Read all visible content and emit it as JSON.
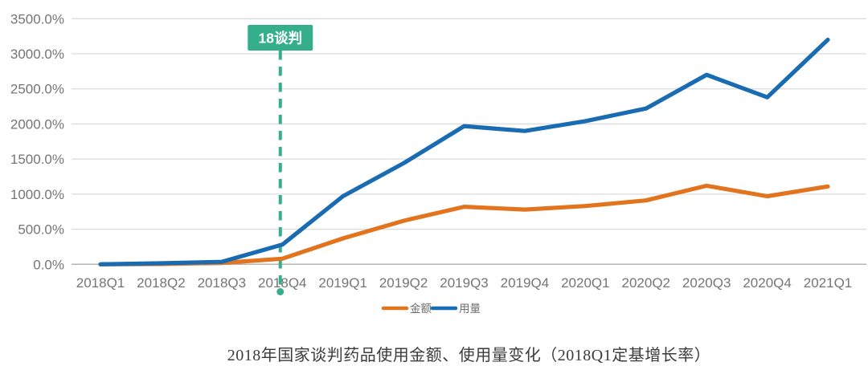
{
  "title": "2018年国家谈判药品使用金额、使用量变化（2018Q1定基增长率）",
  "chart_data": {
    "type": "line",
    "title": "2018年国家谈判药品使用金额、使用量变化（2018Q1定基增长率）",
    "categories": [
      "2018Q1",
      "2018Q2",
      "2018Q3",
      "2018Q4",
      "2019Q1",
      "2019Q2",
      "2019Q3",
      "2019Q4",
      "2020Q1",
      "2020Q2",
      "2020Q3",
      "2020Q4",
      "2021Q1"
    ],
    "series": [
      {
        "id": "amount",
        "name": "金额",
        "color": "#e2741e",
        "values": [
          0,
          5,
          20,
          80,
          370,
          620,
          820,
          780,
          830,
          910,
          1120,
          970,
          1110
        ]
      },
      {
        "id": "volume",
        "name": "用量",
        "color": "#1a6cb2",
        "values": [
          0,
          15,
          35,
          280,
          970,
          1440,
          1970,
          1900,
          2040,
          2220,
          2700,
          2380,
          3200
        ]
      }
    ],
    "unit": "percent",
    "ylim": [
      0,
      3500
    ],
    "yticks": [
      {
        "value": 0,
        "label": "0.0%"
      },
      {
        "value": 500,
        "label": "500.0%"
      },
      {
        "value": 1000,
        "label": "1000.0%"
      },
      {
        "value": 1500,
        "label": "1500.0%"
      },
      {
        "value": 2000,
        "label": "2000.0%"
      },
      {
        "value": 2500,
        "label": "2500.0%"
      },
      {
        "value": 3000,
        "label": "3000.0%"
      },
      {
        "value": 3500,
        "label": "3500.0%"
      }
    ],
    "grid": "horizontal",
    "legend_position": "bottom-center",
    "annotation": {
      "text": "18谈判",
      "at_category": "2018Q4",
      "color": "#35ae8c"
    },
    "colors": {
      "gridline": "#dcdcdc",
      "zero_line": "#b5b5b5",
      "tick_text": "#757575"
    }
  }
}
